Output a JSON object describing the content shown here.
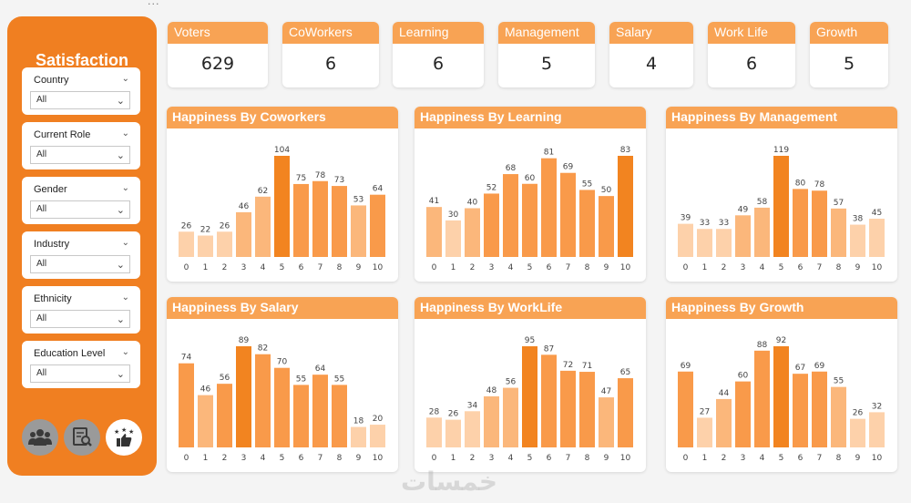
{
  "sidebar": {
    "title": "Satisfaction",
    "filters": [
      {
        "label": "Country",
        "value": "All"
      },
      {
        "label": "Current Role",
        "value": "All"
      },
      {
        "label": "Gender",
        "value": "All"
      },
      {
        "label": "Industry",
        "value": "All"
      },
      {
        "label": "Ethnicity",
        "value": "All"
      },
      {
        "label": "Education Level",
        "value": "All"
      }
    ],
    "nav_buttons": [
      {
        "icon": "people-group-icon",
        "active": false
      },
      {
        "icon": "report-search-icon",
        "active": false
      },
      {
        "icon": "thumbs-up-stars-icon",
        "active": true
      }
    ]
  },
  "kpis": [
    {
      "label": "Voters",
      "value": "629"
    },
    {
      "label": "CoWorkers",
      "value": "6"
    },
    {
      "label": "Learning",
      "value": "6"
    },
    {
      "label": "Management",
      "value": "5"
    },
    {
      "label": "Salary",
      "value": "4"
    },
    {
      "label": "Work Life",
      "value": "6"
    },
    {
      "label": "Growth",
      "value": "5"
    }
  ],
  "colors": {
    "sidebar": "#f07f21",
    "header": "#f8a354",
    "bar_light": "#fdd1aa",
    "bar_mid": "#fbb77b",
    "bar_strong": "#f99a4a",
    "bar_max": "#f28420"
  },
  "watermark": "خمسات",
  "chart_data": [
    {
      "type": "bar",
      "title": "Happiness By Coworkers",
      "categories": [
        "0",
        "1",
        "2",
        "3",
        "4",
        "5",
        "6",
        "7",
        "8",
        "9",
        "10"
      ],
      "values": [
        26,
        22,
        26,
        46,
        62,
        104,
        75,
        78,
        73,
        53,
        64
      ]
    },
    {
      "type": "bar",
      "title": "Happiness By Learning",
      "categories": [
        "0",
        "1",
        "2",
        "3",
        "4",
        "5",
        "6",
        "7",
        "8",
        "9",
        "10"
      ],
      "values": [
        41,
        30,
        40,
        52,
        68,
        60,
        81,
        69,
        55,
        50,
        83
      ]
    },
    {
      "type": "bar",
      "title": "Happiness By Management",
      "categories": [
        "0",
        "1",
        "2",
        "3",
        "4",
        "5",
        "6",
        "7",
        "8",
        "9",
        "10"
      ],
      "values": [
        39,
        33,
        33,
        49,
        58,
        119,
        80,
        78,
        57,
        38,
        45
      ]
    },
    {
      "type": "bar",
      "title": "Happiness By Salary",
      "categories": [
        "0",
        "1",
        "2",
        "3",
        "4",
        "5",
        "6",
        "7",
        "8",
        "9",
        "10"
      ],
      "values": [
        74,
        46,
        56,
        89,
        82,
        70,
        55,
        64,
        55,
        18,
        20
      ]
    },
    {
      "type": "bar",
      "title": "Happiness By WorkLife",
      "categories": [
        "0",
        "1",
        "2",
        "3",
        "4",
        "5",
        "6",
        "7",
        "8",
        "9",
        "10"
      ],
      "values": [
        28,
        26,
        34,
        48,
        56,
        95,
        87,
        72,
        71,
        47,
        65
      ]
    },
    {
      "type": "bar",
      "title": "Happiness By Growth",
      "categories": [
        "0",
        "1",
        "2",
        "3",
        "4",
        "5",
        "6",
        "7",
        "8",
        "9",
        "10"
      ],
      "values": [
        69,
        27,
        44,
        60,
        88,
        92,
        67,
        69,
        55,
        26,
        32
      ]
    }
  ]
}
